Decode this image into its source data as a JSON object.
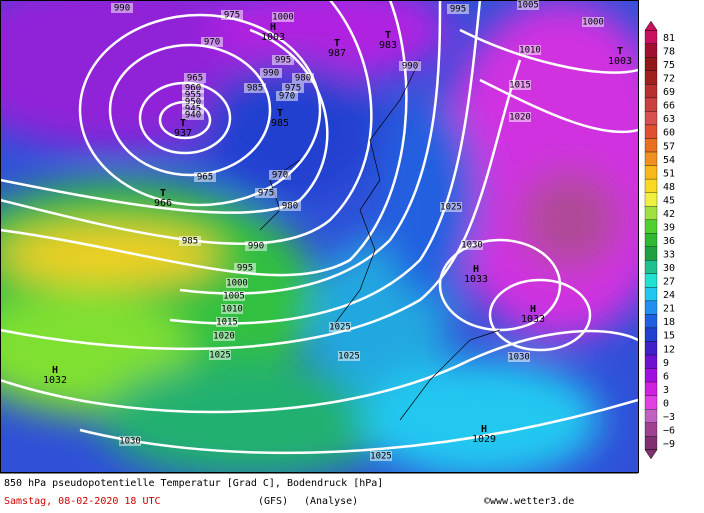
{
  "map": {
    "isobar_labels": [
      990,
      975,
      1000,
      970,
      965,
      960,
      955,
      950,
      945,
      940,
      995,
      990,
      985,
      980,
      975,
      970,
      990,
      995,
      1005,
      1000,
      1010,
      1015,
      1020,
      965,
      970,
      975,
      980,
      985,
      990,
      995,
      1000,
      1005,
      1010,
      1015,
      1020,
      1025,
      1025,
      1030,
      1025,
      1025,
      1030,
      1030,
      1025
    ],
    "centers": [
      {
        "symbol": "T",
        "value": 937
      },
      {
        "symbol": "T",
        "value": 966
      },
      {
        "symbol": "H",
        "value": 1003
      },
      {
        "symbol": "T",
        "value": 987
      },
      {
        "symbol": "T",
        "value": 983
      },
      {
        "symbol": "T",
        "value": 985
      },
      {
        "symbol": "T",
        "value": 1003
      },
      {
        "symbol": "H",
        "value": 1033
      },
      {
        "symbol": "H",
        "value": 1033
      },
      {
        "symbol": "H",
        "value": 1032
      },
      {
        "symbol": "H",
        "value": 1029
      }
    ]
  },
  "colorbar": {
    "labels": [
      "81",
      "78",
      "75",
      "72",
      "69",
      "66",
      "63",
      "60",
      "57",
      "54",
      "51",
      "48",
      "45",
      "42",
      "39",
      "36",
      "33",
      "30",
      "27",
      "24",
      "21",
      "18",
      "15",
      "12",
      "9",
      "6",
      "3",
      "0",
      "−3",
      "−6",
      "−9"
    ],
    "colors": [
      "#c8105e",
      "#a0102e",
      "#901818",
      "#a02020",
      "#b83030",
      "#c84040",
      "#d85050",
      "#e05030",
      "#e87020",
      "#f09020",
      "#f8b818",
      "#f8d820",
      "#f0f040",
      "#a0e040",
      "#50d030",
      "#30b830",
      "#20a040",
      "#20c090",
      "#20e0d0",
      "#20c8f0",
      "#2090f0",
      "#2060e0",
      "#2040d0",
      "#4020c8",
      "#7010d0",
      "#a010e0",
      "#d020e0",
      "#e040e0",
      "#c060c0",
      "#a04090",
      "#803070"
    ]
  },
  "footer": {
    "title": "850 hPa pseudopotentielle Temperatur [Grad C], Bodendruck [hPa]",
    "date": "Samstag, 08-02-2020  18 UTC",
    "model": "(GFS)",
    "run": "(Analyse)",
    "credit": "©www.wetter3.de"
  }
}
